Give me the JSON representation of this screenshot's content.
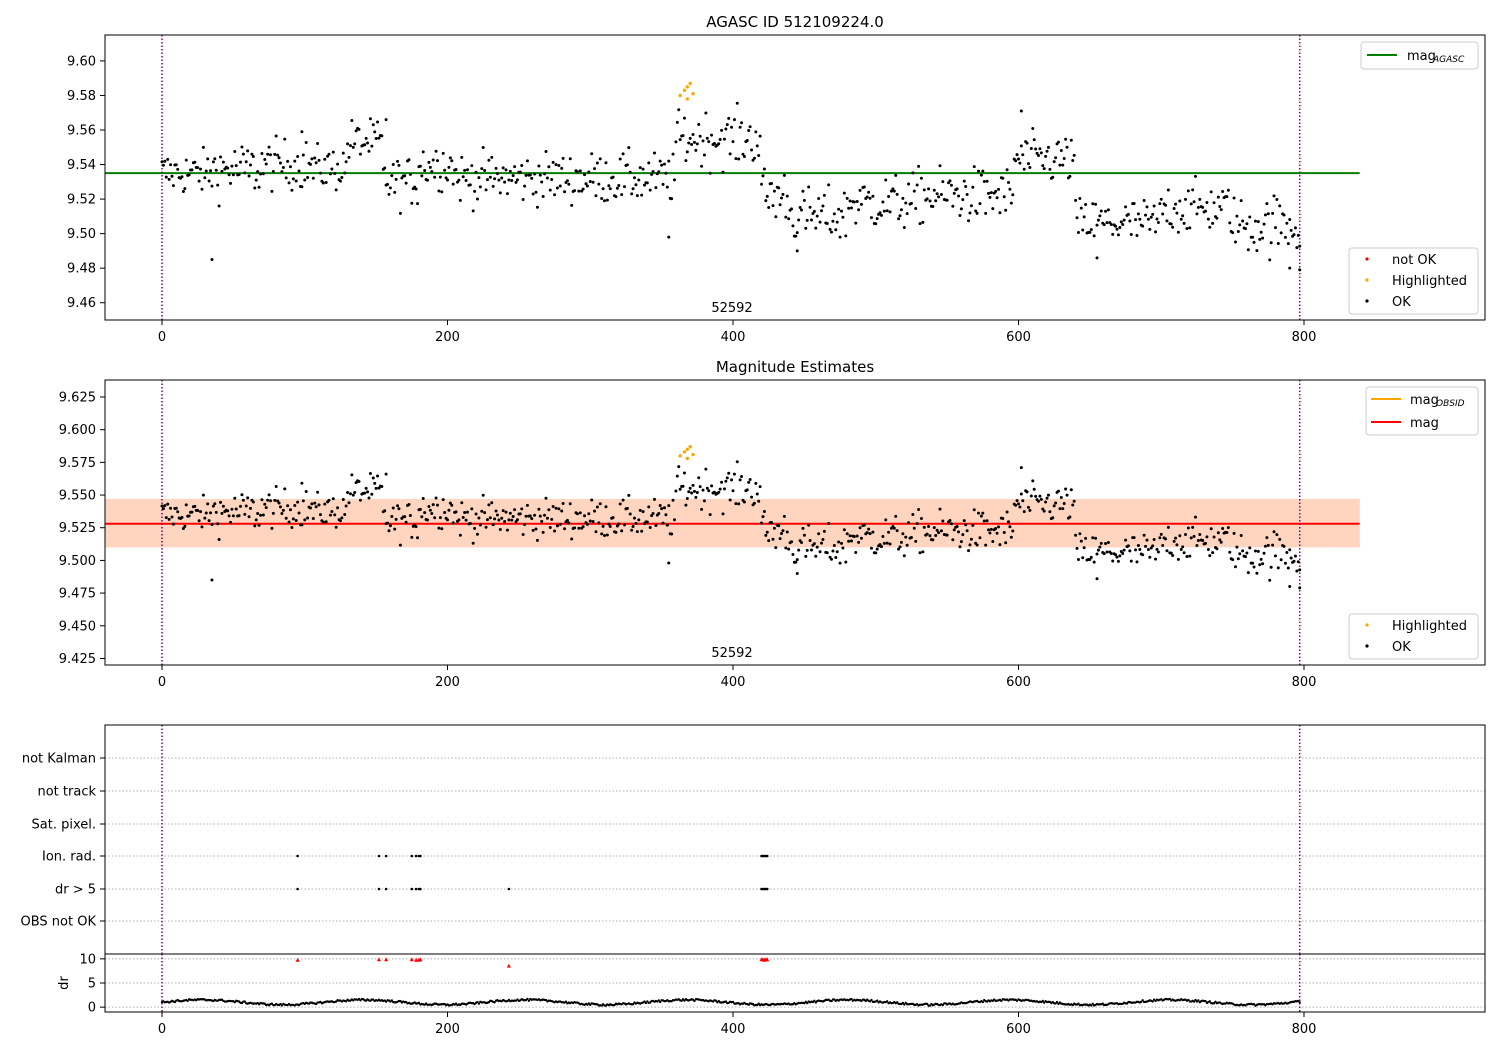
{
  "figure": {
    "colors": {
      "ok": "#000000",
      "highlighted": "#ffa500",
      "not_ok": "#ff0000",
      "agasc_line": "#008000",
      "mag_line": "#ff0000",
      "obsid_line": "#ffa500",
      "band_outer": "#ffc0cb",
      "band_inner": "#ffd4b8",
      "vline": "#800080",
      "grid": "#b0b0b0"
    }
  },
  "chart_data": [
    {
      "type": "scatter",
      "title": "AGASC ID 512109224.0",
      "xlabel": "",
      "ylabel": "",
      "xlim": [
        -40,
        840
      ],
      "ylim": [
        9.45,
        9.615
      ],
      "x_ticks": [
        "0",
        "200",
        "400",
        "600",
        "800"
      ],
      "y_ticks": [
        "9.46",
        "9.48",
        "9.50",
        "9.52",
        "9.54",
        "9.56",
        "9.58",
        "9.60"
      ],
      "obsid_label": "52592",
      "vertical_lines": [
        0,
        797
      ],
      "reference_lines": [
        {
          "name": "mag",
          "name_sub": "AGASC",
          "value": 9.535,
          "x_range": [
            -40,
            839
          ]
        }
      ],
      "legend_lines": [
        {
          "label": "mag",
          "sub": "AGASC",
          "color": "#008000"
        }
      ],
      "legend_markers": [
        {
          "label": "not OK",
          "color": "#ff0000"
        },
        {
          "label": "Highlighted",
          "color": "#ffa500"
        },
        {
          "label": "OK",
          "color": "#000000"
        }
      ],
      "legend_position": "top-right / lower-right",
      "segments": [
        {
          "x_range": [
            0,
            35
          ],
          "base": 9.535,
          "spread": 0.009,
          "status": "OK"
        },
        {
          "x_range": [
            35,
            70
          ],
          "base": 9.537,
          "spread": 0.011,
          "status": "OK"
        },
        {
          "x_range": [
            70,
            105
          ],
          "base": 9.54,
          "spread": 0.01,
          "status": "OK"
        },
        {
          "x_range": [
            105,
            130
          ],
          "base": 9.538,
          "spread": 0.009,
          "status": "OK"
        },
        {
          "x_range": [
            130,
            155
          ],
          "base": 9.553,
          "spread": 0.009,
          "status": "OK"
        },
        {
          "x_range": [
            155,
            180
          ],
          "base": 9.53,
          "spread": 0.01,
          "status": "OK"
        },
        {
          "x_range": [
            180,
            205
          ],
          "base": 9.54,
          "spread": 0.01,
          "status": "OK"
        },
        {
          "x_range": [
            205,
            360
          ],
          "base": 9.532,
          "spread": 0.01,
          "status": "OK"
        },
        {
          "x_range": [
            360,
            420
          ],
          "base": 9.555,
          "spread": 0.011,
          "status": "OK"
        },
        {
          "x_range": [
            420,
            440
          ],
          "base": 9.522,
          "spread": 0.012,
          "status": "OK"
        },
        {
          "x_range": [
            440,
            480
          ],
          "base": 9.51,
          "spread": 0.011,
          "status": "OK"
        },
        {
          "x_range": [
            480,
            530
          ],
          "base": 9.518,
          "spread": 0.011,
          "status": "OK"
        },
        {
          "x_range": [
            530,
            597
          ],
          "base": 9.522,
          "spread": 0.011,
          "status": "OK"
        },
        {
          "x_range": [
            597,
            640
          ],
          "base": 9.543,
          "spread": 0.01,
          "status": "OK"
        },
        {
          "x_range": [
            640,
            700
          ],
          "base": 9.506,
          "spread": 0.01,
          "status": "OK"
        },
        {
          "x_range": [
            700,
            750
          ],
          "base": 9.515,
          "spread": 0.01,
          "status": "OK"
        },
        {
          "x_range": [
            750,
            800
          ],
          "base": 9.505,
          "spread": 0.012,
          "status": "OK"
        }
      ],
      "points_highlighted": [
        {
          "x": 363,
          "y": 9.58
        },
        {
          "x": 366,
          "y": 9.583
        },
        {
          "x": 368,
          "y": 9.585
        },
        {
          "x": 370,
          "y": 9.587
        },
        {
          "x": 372,
          "y": 9.581
        },
        {
          "x": 368,
          "y": 9.578
        }
      ],
      "points_outliers": [
        {
          "x": 35,
          "y": 9.485
        },
        {
          "x": 355,
          "y": 9.498
        },
        {
          "x": 445,
          "y": 9.49
        },
        {
          "x": 790,
          "y": 9.48
        },
        {
          "x": 797,
          "y": 9.479
        },
        {
          "x": 655,
          "y": 9.486
        },
        {
          "x": 602,
          "y": 9.571
        },
        {
          "x": 157,
          "y": 9.566
        },
        {
          "x": 98,
          "y": 9.559
        }
      ]
    },
    {
      "type": "scatter",
      "title": "Magnitude Estimates",
      "xlabel": "",
      "ylabel": "",
      "xlim": [
        -40,
        840
      ],
      "ylim": [
        9.42,
        9.638
      ],
      "x_ticks": [
        "0",
        "200",
        "400",
        "600",
        "800"
      ],
      "y_ticks": [
        "9.425",
        "9.450",
        "9.475",
        "9.500",
        "9.525",
        "9.550",
        "9.575",
        "9.600",
        "9.625"
      ],
      "obsid_label": "52592",
      "vertical_lines": [
        0,
        797
      ],
      "reference_lines": [
        {
          "name": "mag",
          "value": 9.528,
          "x_range": [
            -40,
            839
          ]
        }
      ],
      "bands": [
        {
          "name": "outer",
          "range": [
            9.51,
            9.547
          ],
          "color": "#ffc0cb",
          "x_range": [
            -40,
            839
          ]
        },
        {
          "name": "inner",
          "range": [
            9.51,
            9.547
          ],
          "color": "#ffd4b8",
          "x_range": [
            -40,
            840
          ]
        }
      ],
      "legend_lines": [
        {
          "label": "mag",
          "sub": "OBSID",
          "color": "#ffa500"
        },
        {
          "label": "mag",
          "sub": "",
          "color": "#ff0000"
        }
      ],
      "legend_markers": [
        {
          "label": "Highlighted",
          "color": "#ffa500"
        },
        {
          "label": "OK",
          "color": "#000000"
        }
      ],
      "legend_position": "top-right / lower-right",
      "same_data_as_panel": 0
    },
    {
      "type": "scatter",
      "title": "",
      "xlabel": "",
      "ylabel": "",
      "xlim": [
        -40,
        840
      ],
      "flag_rows": [
        "not Kalman",
        "not track",
        "Sat. pixel.",
        "Ion. rad.",
        "dr > 5",
        "OBS not OK"
      ],
      "vertical_lines": [
        0,
        797
      ],
      "flag_points": {
        "Ion. rad.": [
          95,
          152,
          157,
          175,
          178,
          180,
          181,
          420,
          421,
          422,
          423,
          424
        ],
        "dr > 5": [
          95,
          152,
          157,
          175,
          178,
          180,
          181,
          243,
          420,
          421,
          422,
          423,
          424
        ]
      },
      "dr_panel": {
        "ylabel": "dr",
        "ylim": [
          -1,
          11
        ],
        "y_ticks": [
          "0",
          "5",
          "10"
        ],
        "x_ticks": [
          "0",
          "200",
          "400",
          "600",
          "800"
        ],
        "base_level": 1.0,
        "spikes": [
          {
            "x": 95,
            "y": 9.7
          },
          {
            "x": 152,
            "y": 9.8
          },
          {
            "x": 157,
            "y": 9.8
          },
          {
            "x": 175,
            "y": 9.8
          },
          {
            "x": 178,
            "y": 9.7
          },
          {
            "x": 180,
            "y": 9.7
          },
          {
            "x": 181,
            "y": 9.8
          },
          {
            "x": 243,
            "y": 8.5
          },
          {
            "x": 420,
            "y": 9.8
          },
          {
            "x": 421,
            "y": 9.8
          },
          {
            "x": 422,
            "y": 9.7
          },
          {
            "x": 423,
            "y": 9.8
          },
          {
            "x": 424,
            "y": 9.8
          }
        ]
      }
    }
  ]
}
